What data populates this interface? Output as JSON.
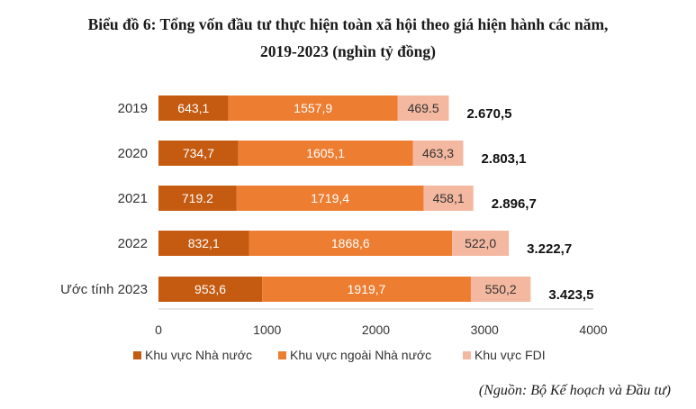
{
  "title_line1": "Biểu đồ 6: Tổng vốn đầu tư thực hiện toàn xã hội theo giá hiện hành các năm,",
  "title_line2": "2019-2023 (nghìn tỷ đồng)",
  "source": "(Nguồn: Bộ Kế hoạch và Đầu tư)",
  "chart_data": {
    "type": "bar",
    "orientation": "horizontal",
    "stacked": true,
    "categories": [
      "2019",
      "2020",
      "2021",
      "2022",
      "Ước tính 2023"
    ],
    "series": [
      {
        "name": "Khu vực Nhà nước",
        "color": "#c55a11",
        "values": [
          643.1,
          734.7,
          719.2,
          832.1,
          953.6
        ],
        "labels": [
          "643,1",
          "734,7",
          "719.2",
          "832,1",
          "953,6"
        ]
      },
      {
        "name": "Khu vực ngoài Nhà nước",
        "color": "#ed7d31",
        "values": [
          1557.9,
          1605.1,
          1719.4,
          1868.6,
          1919.7
        ],
        "labels": [
          "1557,9",
          "1605,1",
          "1719,4",
          "1868,6",
          "1919,7"
        ]
      },
      {
        "name": "Khu vực FDI",
        "color": "#f4b8a0",
        "values": [
          469.5,
          463.3,
          458.1,
          522.0,
          550.2
        ],
        "labels": [
          "469.5",
          "463,3",
          "458,1",
          "522,0",
          "550,2"
        ]
      }
    ],
    "totals": [
      "2.670,5",
      "2.803,1",
      "2.896,7",
      "3.222,7",
      "3.423,5"
    ],
    "xlim": [
      0,
      4000
    ],
    "xticks": [
      0,
      1000,
      2000,
      3000,
      4000
    ],
    "xtick_labels": [
      "0",
      "1000",
      "2000",
      "3000",
      "4000"
    ],
    "grid": false,
    "legend_position": "bottom"
  }
}
